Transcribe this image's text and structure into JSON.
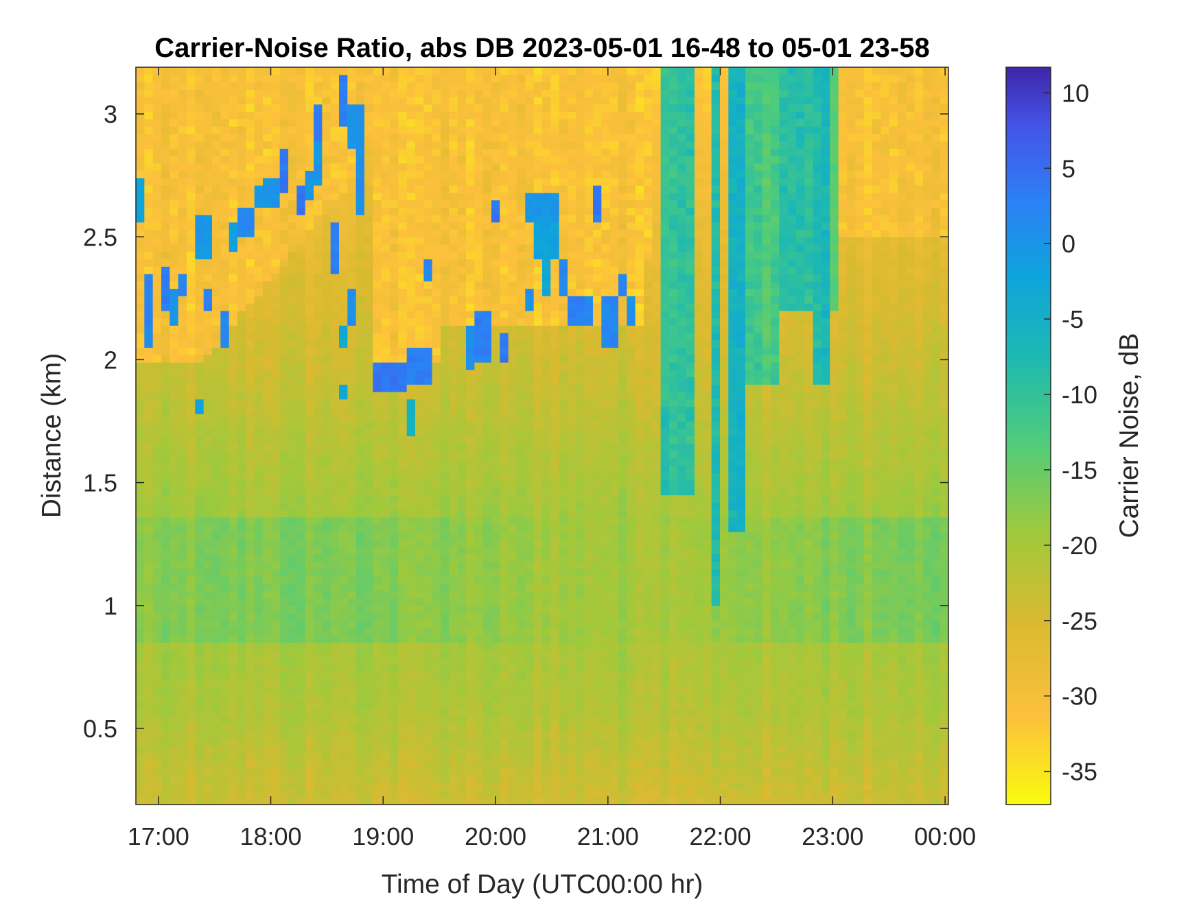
{
  "chart_data": {
    "type": "heatmap",
    "title": "Carrier-Noise Ratio, abs DB 2023-05-01 16-48 to 05-01 23-58",
    "xlabel": "Time of Day (UTC00:00 hr)",
    "ylabel": "Distance (km)",
    "colorbar_label": "Carrier Noise, dB",
    "x_ticks": [
      {
        "value": 17,
        "label": "17:00"
      },
      {
        "value": 18,
        "label": "18:00"
      },
      {
        "value": 19,
        "label": "19:00"
      },
      {
        "value": 20,
        "label": "20:00"
      },
      {
        "value": 21,
        "label": "21:00"
      },
      {
        "value": 22,
        "label": "22:00"
      },
      {
        "value": 23,
        "label": "23:00"
      },
      {
        "value": 24,
        "label": "00:00"
      }
    ],
    "y_ticks": [
      {
        "value": 0.5,
        "label": "0.5"
      },
      {
        "value": 1,
        "label": "1"
      },
      {
        "value": 1.5,
        "label": "1.5"
      },
      {
        "value": 2,
        "label": "2"
      },
      {
        "value": 2.5,
        "label": "2.5"
      },
      {
        "value": 3,
        "label": "3"
      }
    ],
    "colorbar_ticks": [
      {
        "value": 10,
        "label": "10"
      },
      {
        "value": 5,
        "label": "5"
      },
      {
        "value": 0,
        "label": "0"
      },
      {
        "value": -5,
        "label": "-5"
      },
      {
        "value": -10,
        "label": "-10"
      },
      {
        "value": -15,
        "label": "-15"
      },
      {
        "value": -20,
        "label": "-20"
      },
      {
        "value": -25,
        "label": "-25"
      },
      {
        "value": -30,
        "label": "-30"
      },
      {
        "value": -35,
        "label": "-35"
      }
    ],
    "xlim": [
      16.8,
      24.03
    ],
    "ylim": [
      0.19,
      3.19
    ],
    "clim": [
      -37.2,
      11.7
    ],
    "colormap": "parula",
    "grid": false,
    "colorbar_position": "right"
  }
}
